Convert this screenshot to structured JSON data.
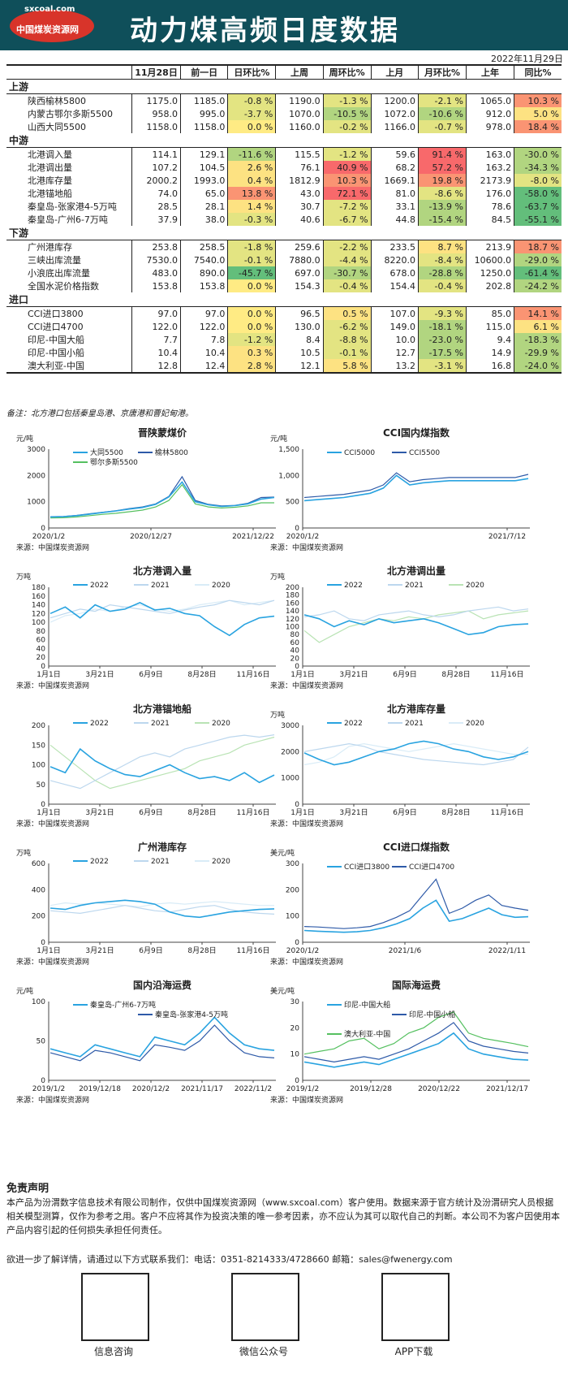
{
  "header": {
    "logo_site": "sxcoal.com",
    "logo_name": "中国煤炭资源网",
    "title": "动力煤高频日度数据",
    "date": "2022年11月29日",
    "bg_color": "#0f4f5a",
    "logo_color": "#d8342a"
  },
  "table": {
    "columns": [
      "",
      "11月28日",
      "前一日",
      "日环比%",
      "上周",
      "周环比%",
      "上月",
      "月环比%",
      "上年",
      "同比%"
    ],
    "sections": [
      {
        "name": "上游",
        "rows": [
          [
            "陕西榆林5800",
            "1175.0",
            "1185.0",
            "-0.8 %",
            "1190.0",
            "-1.3 %",
            "1200.0",
            "-2.1 %",
            "1065.0",
            "10.3 %"
          ],
          [
            "内蒙古鄂尔多斯5500",
            "958.0",
            "995.0",
            "-3.7 %",
            "1070.0",
            "-10.5 %",
            "1072.0",
            "-10.6 %",
            "912.0",
            "5.0 %"
          ],
          [
            "山西大同5500",
            "1158.0",
            "1158.0",
            "0.0 %",
            "1160.0",
            "-0.2 %",
            "1166.0",
            "-0.7 %",
            "978.0",
            "18.4 %"
          ]
        ]
      },
      {
        "name": "中游",
        "rows": [
          [
            "北港调入量",
            "114.1",
            "129.1",
            "-11.6 %",
            "115.5",
            "-1.2 %",
            "59.6",
            "91.4 %",
            "163.0",
            "-30.0 %"
          ],
          [
            "北港调出量",
            "107.2",
            "104.5",
            "2.6 %",
            "76.1",
            "40.9 %",
            "68.2",
            "57.2 %",
            "163.2",
            "-34.3 %"
          ],
          [
            "北港库存量",
            "2000.2",
            "1993.0",
            "0.4 %",
            "1812.9",
            "10.3 %",
            "1669.1",
            "19.8 %",
            "2173.9",
            "-8.0 %"
          ],
          [
            "北港锚地船",
            "74.0",
            "65.0",
            "13.8 %",
            "43.0",
            "72.1 %",
            "81.0",
            "-8.6 %",
            "176.0",
            "-58.0 %"
          ],
          [
            "秦皇岛-张家港4-5万吨",
            "28.5",
            "28.1",
            "1.4 %",
            "30.7",
            "-7.2 %",
            "33.1",
            "-13.9 %",
            "78.6",
            "-63.7 %"
          ],
          [
            "秦皇岛-广州6-7万吨",
            "37.9",
            "38.0",
            "-0.3 %",
            "40.6",
            "-6.7 %",
            "44.8",
            "-15.4 %",
            "84.5",
            "-55.1 %"
          ]
        ]
      },
      {
        "name": "下游",
        "rows": [
          [
            "广州港库存",
            "253.8",
            "258.5",
            "-1.8 %",
            "259.6",
            "-2.2 %",
            "233.5",
            "8.7 %",
            "213.9",
            "18.7 %"
          ],
          [
            "三峡出库流量",
            "7530.0",
            "7540.0",
            "-0.1 %",
            "7880.0",
            "-4.4 %",
            "8220.0",
            "-8.4 %",
            "10600.0",
            "-29.0 %"
          ],
          [
            "小浪底出库流量",
            "483.0",
            "890.0",
            "-45.7 %",
            "697.0",
            "-30.7 %",
            "678.0",
            "-28.8 %",
            "1250.0",
            "-61.4 %"
          ],
          [
            "全国水泥价格指数",
            "153.8",
            "153.8",
            "0.0 %",
            "154.3",
            "-0.4 %",
            "154.4",
            "-0.4 %",
            "202.8",
            "-24.2 %"
          ]
        ]
      },
      {
        "name": "进口",
        "rows": [
          [
            "CCI进口3800",
            "97.0",
            "97.0",
            "0.0 %",
            "96.5",
            "0.5 %",
            "107.0",
            "-9.3 %",
            "85.0",
            "14.1 %"
          ],
          [
            "CCI进口4700",
            "122.0",
            "122.0",
            "0.0 %",
            "130.0",
            "-6.2 %",
            "149.0",
            "-18.1 %",
            "115.0",
            "6.1 %"
          ],
          [
            "印尼-中国大船",
            "7.7",
            "7.8",
            "-1.2 %",
            "8.4",
            "-8.8 %",
            "10.0",
            "-23.0 %",
            "9.4",
            "-18.3 %"
          ],
          [
            "印尼-中国小船",
            "10.4",
            "10.4",
            "0.3 %",
            "10.5",
            "-0.1 %",
            "12.7",
            "-17.5 %",
            "14.9",
            "-29.9 %"
          ],
          [
            "澳大利亚-中国",
            "12.8",
            "12.4",
            "2.8 %",
            "12.1",
            "5.8 %",
            "13.2",
            "-3.1 %",
            "16.8",
            "-24.0 %"
          ]
        ]
      }
    ]
  },
  "note": "备注：北方港口包括秦皇岛港、京唐港和曹妃甸港。",
  "source_text": "来源：中国煤炭资源网",
  "chart_data": [
    {
      "type": "line",
      "title": "晋陕蒙煤价",
      "ylabel": "元/吨",
      "ylim": [
        0,
        3000
      ],
      "yticks": [
        "0",
        "1000",
        "2000",
        "3000"
      ],
      "xticks": [
        "2020/1/2",
        "2020/12/27",
        "2021/12/22"
      ],
      "series": [
        {
          "name": "大同5500",
          "color": "#29a3e0",
          "values": [
            420,
            430,
            470,
            530,
            590,
            650,
            720,
            780,
            900,
            1180,
            1750,
            1000,
            880,
            820,
            850,
            920,
            1100,
            1160
          ]
        },
        {
          "name": "榆林5800",
          "color": "#2e5aa8",
          "values": [
            430,
            440,
            480,
            540,
            600,
            660,
            740,
            800,
            920,
            1200,
            1950,
            1050,
            900,
            840,
            860,
            940,
            1160,
            1175
          ]
        },
        {
          "name": "鄂尔多斯5500",
          "color": "#55c060",
          "values": [
            380,
            390,
            420,
            470,
            520,
            560,
            620,
            680,
            800,
            1050,
            1650,
            920,
            800,
            760,
            790,
            840,
            960,
            958
          ]
        }
      ]
    },
    {
      "type": "line",
      "title": "CCI国内煤指数",
      "ylabel": "元/吨",
      "ylim": [
        0,
        1500
      ],
      "yticks": [
        "0",
        "500",
        "1,000",
        "1,500"
      ],
      "xticks": [
        "2020/1/2",
        "2021/7/12"
      ],
      "series": [
        {
          "name": "CCI5000",
          "color": "#29a3e0",
          "values": [
            520,
            540,
            560,
            580,
            620,
            660,
            760,
            1000,
            820,
            860,
            880,
            900,
            900,
            900,
            900,
            900,
            900,
            940
          ]
        },
        {
          "name": "CCI5500",
          "color": "#2e5aa8",
          "values": [
            580,
            600,
            620,
            640,
            680,
            720,
            820,
            1050,
            880,
            920,
            940,
            960,
            960,
            960,
            960,
            960,
            960,
            1020
          ]
        }
      ]
    },
    {
      "type": "line",
      "title": "北方港调入量",
      "ylabel": "万吨",
      "ylim": [
        0,
        180
      ],
      "yticks": [
        "0",
        "20",
        "40",
        "60",
        "80",
        "100",
        "120",
        "140",
        "160",
        "180"
      ],
      "xticks": [
        "1月1日",
        "3月21日",
        "6月9日",
        "8月28日",
        "11月16日"
      ],
      "series": [
        {
          "name": "2022",
          "color": "#29a3e0",
          "values": [
            120,
            135,
            110,
            140,
            125,
            130,
            145,
            128,
            132,
            120,
            115,
            90,
            70,
            95,
            110,
            114
          ]
        },
        {
          "name": "2021",
          "color": "#bcd7ee",
          "values": [
            110,
            120,
            130,
            125,
            140,
            135,
            130,
            125,
            120,
            128,
            135,
            140,
            150,
            145,
            140,
            150
          ]
        },
        {
          "name": "2020",
          "color": "#d9ecf7",
          "values": [
            100,
            115,
            120,
            130,
            125,
            135,
            140,
            130,
            125,
            130,
            140,
            145,
            150,
            140,
            145,
            150
          ]
        }
      ]
    },
    {
      "type": "line",
      "title": "北方港调出量",
      "ylabel": "万吨",
      "ylim": [
        0,
        200
      ],
      "yticks": [
        "0",
        "20",
        "40",
        "60",
        "80",
        "100",
        "120",
        "140",
        "160",
        "180",
        "200"
      ],
      "xticks": [
        "1月1日",
        "3月21日",
        "6月9日",
        "8月28日",
        "11月16日"
      ],
      "series": [
        {
          "name": "2022",
          "color": "#29a3e0",
          "values": [
            130,
            120,
            100,
            115,
            105,
            120,
            110,
            115,
            120,
            110,
            95,
            80,
            85,
            100,
            105,
            107
          ]
        },
        {
          "name": "2021",
          "color": "#bcd7ee",
          "values": [
            125,
            130,
            140,
            120,
            115,
            130,
            135,
            140,
            130,
            125,
            130,
            140,
            145,
            150,
            140,
            145
          ]
        },
        {
          "name": "2020",
          "color": "#b9e3b4",
          "values": [
            90,
            60,
            80,
            100,
            110,
            120,
            115,
            125,
            120,
            130,
            135,
            140,
            120,
            130,
            135,
            140
          ]
        }
      ]
    },
    {
      "type": "line",
      "title": "北方港锚地船",
      "ylim": [
        0,
        200
      ],
      "yticks": [
        "0",
        "50",
        "100",
        "150",
        "200"
      ],
      "xticks": [
        "1月1日",
        "3月21日",
        "6月9日",
        "8月28日",
        "11月16日"
      ],
      "series": [
        {
          "name": "2022",
          "color": "#29a3e0",
          "values": [
            95,
            80,
            140,
            110,
            90,
            75,
            70,
            85,
            100,
            80,
            65,
            70,
            60,
            80,
            55,
            74
          ]
        },
        {
          "name": "2021",
          "color": "#bcd7ee",
          "values": [
            60,
            50,
            40,
            60,
            80,
            100,
            120,
            130,
            120,
            140,
            150,
            160,
            170,
            175,
            170,
            176
          ]
        },
        {
          "name": "2020",
          "color": "#b9e3b4",
          "values": [
            150,
            120,
            90,
            60,
            40,
            50,
            60,
            70,
            80,
            90,
            110,
            120,
            130,
            150,
            160,
            170
          ]
        }
      ]
    },
    {
      "type": "line",
      "title": "北方港库存量",
      "ylabel": "万吨",
      "ylim": [
        0,
        3000
      ],
      "yticks": [
        "0",
        "1000",
        "2000",
        "3000"
      ],
      "xticks": [
        "1月1日",
        "3月21日",
        "6月9日",
        "8月28日",
        "11月16日"
      ],
      "series": [
        {
          "name": "2022",
          "color": "#29a3e0",
          "values": [
            1950,
            1700,
            1500,
            1600,
            1800,
            2000,
            2100,
            2300,
            2400,
            2300,
            2100,
            2000,
            1800,
            1700,
            1800,
            2000
          ]
        },
        {
          "name": "2021",
          "color": "#bcd7ee",
          "values": [
            2000,
            2100,
            2200,
            2300,
            2200,
            2000,
            1900,
            1800,
            1700,
            1650,
            1600,
            1550,
            1500,
            1600,
            1700,
            2170
          ]
        },
        {
          "name": "2020",
          "color": "#d9ecf7",
          "values": [
            1500,
            1600,
            1800,
            2200,
            2300,
            2200,
            2100,
            2000,
            2100,
            2200,
            2300,
            2200,
            2100,
            2000,
            1900,
            1900
          ]
        }
      ]
    },
    {
      "type": "line",
      "title": "广州港库存",
      "ylabel": "万吨",
      "ylim": [
        0,
        600
      ],
      "yticks": [
        "0",
        "200",
        "400",
        "600"
      ],
      "xticks": [
        "1月1日",
        "3月21日",
        "6月9日",
        "8月28日",
        "11月16日"
      ],
      "series": [
        {
          "name": "2022",
          "color": "#29a3e0",
          "values": [
            260,
            250,
            280,
            300,
            310,
            320,
            310,
            290,
            230,
            200,
            190,
            210,
            230,
            240,
            250,
            254
          ]
        },
        {
          "name": "2021",
          "color": "#bcd7ee",
          "values": [
            240,
            230,
            220,
            240,
            260,
            280,
            260,
            240,
            230,
            250,
            270,
            280,
            250,
            230,
            220,
            214
          ]
        },
        {
          "name": "2020",
          "color": "#d9ecf7",
          "values": [
            280,
            300,
            290,
            300,
            290,
            280,
            270,
            290,
            300,
            290,
            300,
            310,
            300,
            290,
            280,
            280
          ]
        }
      ]
    },
    {
      "type": "line",
      "title": "CCI进口煤指数",
      "ylabel": "美元/吨",
      "ylim": [
        0,
        300
      ],
      "yticks": [
        "0",
        "100",
        "200",
        "300"
      ],
      "xticks": [
        "2020/1/2",
        "2021/1/6",
        "2022/1/11"
      ],
      "series": [
        {
          "name": "CCI进口3800",
          "color": "#29a3e0",
          "values": [
            45,
            42,
            40,
            38,
            40,
            45,
            55,
            70,
            90,
            130,
            160,
            80,
            90,
            110,
            130,
            105,
            95,
            97
          ]
        },
        {
          "name": "CCI进口4700",
          "color": "#2e5aa8",
          "values": [
            60,
            58,
            55,
            52,
            55,
            60,
            75,
            95,
            120,
            180,
            240,
            110,
            130,
            160,
            180,
            140,
            130,
            122
          ]
        }
      ]
    },
    {
      "type": "line",
      "title": "国内沿海运费",
      "ylabel": "元/吨",
      "ylim": [
        0,
        100
      ],
      "yticks": [
        "0",
        "50",
        "100"
      ],
      "xticks": [
        "2019/1/2",
        "2019/12/18",
        "2020/12/2",
        "2021/11/17",
        "2022/11/2"
      ],
      "series": [
        {
          "name": "秦皇岛-广州6-7万吨",
          "color": "#29a3e0",
          "values": [
            40,
            35,
            30,
            45,
            40,
            35,
            30,
            55,
            50,
            45,
            60,
            80,
            60,
            45,
            40,
            38
          ]
        },
        {
          "name": "秦皇岛-张家港4-5万吨",
          "color": "#2e5aa8",
          "values": [
            35,
            30,
            25,
            38,
            35,
            30,
            25,
            45,
            42,
            38,
            50,
            70,
            50,
            35,
            30,
            28.5
          ]
        }
      ]
    },
    {
      "type": "line",
      "title": "国际海运费",
      "ylabel": "美元/吨",
      "ylim": [
        0,
        30
      ],
      "yticks": [
        "0",
        "10",
        "20",
        "30"
      ],
      "xticks": [
        "2019/1/2",
        "2019/12/28",
        "2020/12/22",
        "2021/12/17"
      ],
      "series": [
        {
          "name": "印尼-中国大船",
          "color": "#29a3e0",
          "values": [
            7,
            6,
            5,
            6,
            7,
            6,
            8,
            10,
            12,
            14,
            18,
            12,
            10,
            9,
            8,
            7.7
          ]
        },
        {
          "name": "印尼-中国小船",
          "color": "#2e5aa8",
          "values": [
            9,
            8,
            7,
            8,
            9,
            8,
            10,
            12,
            15,
            18,
            22,
            15,
            13,
            12,
            11,
            10.4
          ]
        },
        {
          "name": "澳大利亚-中国",
          "color": "#55c060",
          "values": [
            10,
            11,
            12,
            15,
            16,
            12,
            14,
            18,
            20,
            24,
            26,
            18,
            16,
            15,
            14,
            12.8
          ]
        }
      ]
    }
  ],
  "disclaimer": {
    "title": "免责声明",
    "text": "本产品为汾渭数字信息技术有限公司制作，仅供中国煤炭资源网（www.sxcoal.com）客户使用。数据来源于官方统计及汾渭研究人员根据相关模型测算，仅作为参考之用。客户不应将其作为投资决策的唯一参考因素，亦不应认为其可以取代自己的判断。本公司不为客户因使用本产品内容引起的任何损失承担任何责任。",
    "contact": "欲进一步了解详情，请通过以下方式联系我们：电话：0351-8214333/4728660 邮箱：sales@fwenergy.com"
  },
  "qr": [
    {
      "label": "信息咨询"
    },
    {
      "label": "微信公众号"
    },
    {
      "label": "APP下载"
    }
  ]
}
